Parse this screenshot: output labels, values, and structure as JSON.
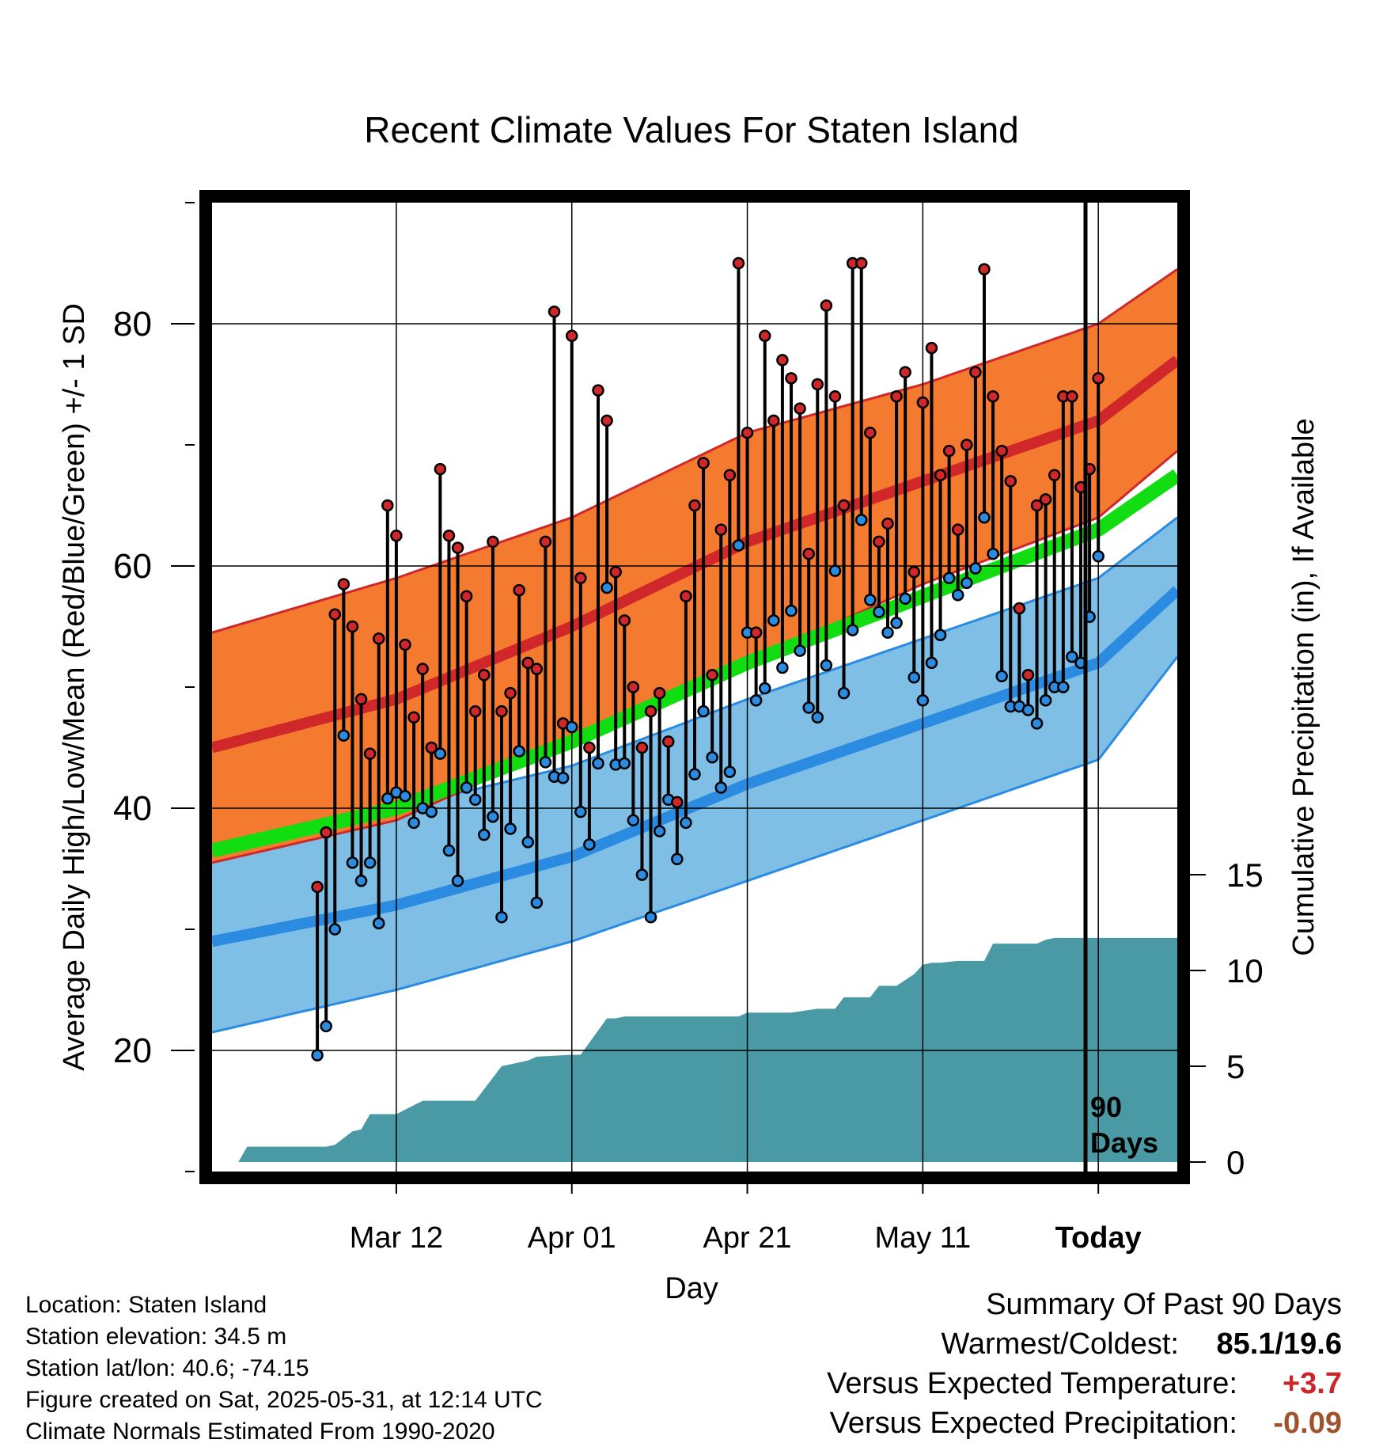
{
  "chart_data": {
    "type": "line",
    "title": "Recent Climate Values For Staten Island",
    "xlabel": "Day",
    "ylabel": "Average Daily High/Low/Mean (Red/Blue/Green) +/- 1 SD",
    "y2label": "Cumulative Precipitation (in), If Available",
    "x_ticks": [
      "Mar 12",
      "Apr 01",
      "Apr 21",
      "May 11",
      "Today"
    ],
    "y_ticks": [
      "20",
      "40",
      "60",
      "80"
    ],
    "y2_ticks": [
      "0",
      "5",
      "10",
      "15"
    ],
    "ylim": [
      10,
      90
    ],
    "y2lim": [
      0,
      15
    ],
    "xlim_days": [
      -101,
      9
    ],
    "today_label": "90\nDays",
    "today_label_line1": "90",
    "today_label_line2": "Days",
    "colors": {
      "high_band": "#F47A30",
      "high_mean": "#D0282A",
      "low_band": "#7FBFE6",
      "low_mean": "#2A8BE0",
      "normal_mean": "#11DD11",
      "precip": "#4A9AA5",
      "obs_high_dot": "#D0282A",
      "obs_low_dot": "#2A8BE0"
    },
    "normals": {
      "day": [
        -101,
        -80,
        -60,
        -40,
        -20,
        0,
        9
      ],
      "high_mean": [
        45,
        49,
        55,
        62,
        67,
        72,
        77
      ],
      "high_upper": [
        54.5,
        59,
        64,
        71,
        75,
        80,
        84.5
      ],
      "high_lower": [
        35.5,
        39,
        45.5,
        52,
        58.5,
        64,
        69.5
      ],
      "mean": [
        36.5,
        40,
        45.5,
        52,
        57.5,
        63,
        67.5
      ],
      "low_mean": [
        29,
        32,
        36,
        42,
        47,
        52,
        58
      ],
      "low_upper": [
        36,
        40,
        43.5,
        49,
        54,
        59,
        64
      ],
      "low_lower": [
        21.5,
        25,
        29,
        34,
        39,
        44,
        52.5
      ]
    },
    "observed_high": [
      33.5,
      38,
      56,
      58.5,
      55,
      49,
      44.5,
      54,
      65,
      62.5,
      53.5,
      47.5,
      51.5,
      45,
      68,
      62.5,
      61.5,
      57.5,
      48,
      51,
      62,
      48,
      49.5,
      58,
      52,
      51.5,
      62,
      81,
      47,
      79,
      59,
      45,
      74.5,
      72,
      59.5,
      55.5,
      50,
      45,
      48,
      49.5,
      45.5,
      40.5,
      57.5,
      65,
      68.5,
      51,
      63,
      67.5,
      85,
      71,
      54.5,
      79,
      72,
      77,
      75.5,
      73,
      61,
      75,
      81.5,
      74,
      65,
      85,
      85,
      71,
      62,
      63.5,
      74,
      76,
      59.5,
      73.5,
      78,
      67.5,
      69.5,
      63,
      70,
      76,
      84.5,
      74,
      69.5,
      67,
      56.5,
      51,
      65,
      65.5,
      67.5,
      74,
      74,
      66.5,
      68,
      75.5
    ],
    "observed_low": [
      19.6,
      22,
      30,
      46,
      35.5,
      34,
      35.5,
      30.5,
      40.8,
      41.3,
      41,
      38.8,
      40,
      39.7,
      44.5,
      36.5,
      34,
      41.7,
      40.7,
      37.8,
      39.3,
      31,
      38.3,
      44.7,
      37.2,
      32.2,
      43.8,
      42.6,
      42.5,
      46.7,
      39.7,
      37,
      43.7,
      58.2,
      43.6,
      43.7,
      39,
      34.5,
      31,
      38.1,
      40.7,
      35.8,
      38.8,
      42.8,
      48,
      44.2,
      41.7,
      43,
      61.7,
      54.5,
      48.9,
      49.9,
      55.5,
      51.6,
      56.3,
      53,
      48.3,
      47.5,
      51.8,
      59.6,
      49.5,
      54.7,
      63.8,
      57.2,
      56.2,
      54.5,
      55.3,
      57.3,
      50.8,
      48.9,
      52,
      54.3,
      59,
      57.6,
      58.6,
      59.8,
      64,
      61,
      50.9,
      48.4,
      48.4,
      48.1,
      47,
      48.9,
      50,
      50,
      52.5,
      52,
      55.8,
      60.8
    ],
    "cumulative_precip": {
      "day": [
        -101,
        -99,
        -98,
        -97,
        -88,
        -87,
        -85,
        -84,
        -83,
        -81,
        -80,
        -77,
        -76,
        -72,
        -71,
        -68,
        -65,
        -64,
        -60,
        -59,
        -56,
        -55,
        -54,
        -50,
        -49,
        -46,
        -45,
        -41,
        -40,
        -36,
        -35,
        -32,
        -30,
        -29,
        -27,
        -26,
        -25,
        -24,
        -23,
        -21,
        -20,
        -19,
        -18,
        -16,
        -15,
        -14,
        -13,
        -12,
        -11,
        -10,
        -8,
        -7,
        -6,
        -5,
        -4,
        -3,
        -2,
        -1,
        0,
        9
      ],
      "value": [
        0,
        0,
        0,
        0.8,
        0.8,
        0.9,
        1.6,
        1.7,
        2.5,
        2.5,
        2.5,
        3.2,
        3.2,
        3.2,
        3.2,
        5,
        5.3,
        5.5,
        5.6,
        5.6,
        7.5,
        7.5,
        7.6,
        7.6,
        7.6,
        7.6,
        7.6,
        7.6,
        7.8,
        7.8,
        7.8,
        8.0,
        8.0,
        8.6,
        8.6,
        8.6,
        9.2,
        9.2,
        9.2,
        9.8,
        10.3,
        10.4,
        10.4,
        10.5,
        10.5,
        10.5,
        10.5,
        11.4,
        11.4,
        11.4,
        11.4,
        11.4,
        11.6,
        11.7,
        11.7,
        11.7,
        11.7,
        11.7,
        11.7,
        11.7
      ]
    }
  },
  "info": {
    "location": "Location: Staten Island",
    "elevation": "Station elevation: 34.5 m",
    "latlon": "Station lat/lon: 40.6; -74.15",
    "created": "Figure created on Sat, 2025-05-31, at 12:14 UTC",
    "normals": "Climate Normals Estimated From 1990-2020"
  },
  "summary": {
    "heading": "Summary Of Past 90 Days",
    "warm_cold_label": "Warmest/Coldest:",
    "warm_cold_value": "85.1/19.6",
    "temp_label": "Versus Expected Temperature:",
    "temp_value": "+3.7",
    "temp_color": "#C8282A",
    "precip_label": "Versus Expected Precipitation:",
    "precip_value": "-0.09",
    "precip_color": "#A0522D"
  }
}
